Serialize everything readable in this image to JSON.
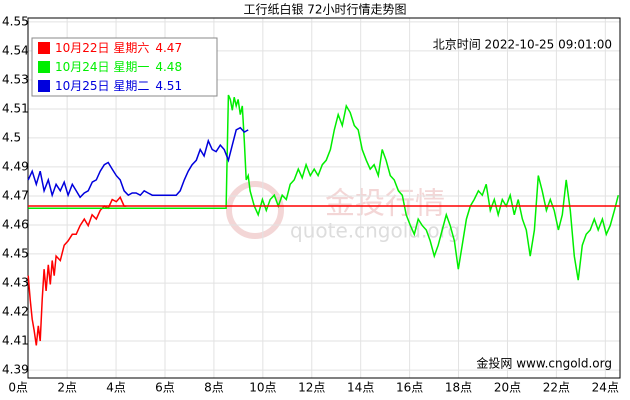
{
  "chart_data": {
    "type": "line",
    "title": "工行纸白银 72小时行情走势图",
    "subtitle": "北京时间 2022-10-25 09:01:00",
    "source": "金投网 www.cngold.org",
    "watermark": [
      "金投行情",
      "quote.cngold.org"
    ],
    "xlim": [
      0.4,
      24.6
    ],
    "xticks": [
      {
        "value": 0,
        "label": "0点"
      },
      {
        "value": 2,
        "label": "2点"
      },
      {
        "value": 4,
        "label": "4点"
      },
      {
        "value": 6,
        "label": "6点"
      },
      {
        "value": 8,
        "label": "8点"
      },
      {
        "value": 10,
        "label": "10点"
      },
      {
        "value": 12,
        "label": "12点"
      },
      {
        "value": 14,
        "label": "14点"
      },
      {
        "value": 16,
        "label": "16点"
      },
      {
        "value": 18,
        "label": "18点"
      },
      {
        "value": 20,
        "label": "20点"
      },
      {
        "value": 22,
        "label": "22点"
      },
      {
        "value": 24,
        "label": "24点"
      }
    ],
    "ylim": [
      4.391,
      4.5564
    ],
    "yticks": [
      {
        "value": 4.5546,
        "label": "4.55"
      },
      {
        "value": 4.5413,
        "label": "4.54"
      },
      {
        "value": 4.528,
        "label": "4.53"
      },
      {
        "value": 4.5146,
        "label": "4.51"
      },
      {
        "value": 4.5013,
        "label": "4.5"
      },
      {
        "value": 4.488,
        "label": "4.49"
      },
      {
        "value": 4.4746,
        "label": "4.47"
      },
      {
        "value": 4.4613,
        "label": "4.46"
      },
      {
        "value": 4.448,
        "label": "4.45"
      },
      {
        "value": 4.4346,
        "label": "4.43"
      },
      {
        "value": 4.4213,
        "label": "4.42"
      },
      {
        "value": 4.408,
        "label": "4.41"
      },
      {
        "value": 4.3946,
        "label": "4.39"
      }
    ],
    "grid": true,
    "legend": "top-left",
    "series": [
      {
        "name": "10月22日 星期六",
        "close": 4.47,
        "color": "#ff0000",
        "x": [
          0.41,
          0.49,
          0.57,
          0.65,
          0.74,
          0.82,
          0.9,
          0.98,
          1.06,
          1.14,
          1.23,
          1.31,
          1.39,
          1.47,
          1.55,
          1.72,
          1.88,
          2.04,
          2.21,
          2.37,
          2.53,
          2.7,
          2.86,
          3.02,
          3.19,
          3.35,
          3.52,
          3.68,
          3.84,
          4.01,
          4.17,
          4.33,
          4.42
        ],
        "values": [
          4.438,
          4.427,
          4.418,
          4.413,
          4.406,
          4.415,
          4.408,
          4.427,
          4.441,
          4.431,
          4.443,
          4.434,
          4.445,
          4.438,
          4.447,
          4.445,
          4.452,
          4.454,
          4.457,
          4.457,
          4.461,
          4.464,
          4.461,
          4.466,
          4.464,
          4.468,
          4.47,
          4.469,
          4.473,
          4.472,
          4.474,
          4.47,
          4.47
        ]
      },
      {
        "name": "10月24日 星期一",
        "close": 4.48,
        "color": "#00ee00",
        "x": [
          0.41,
          8.5,
          8.59,
          8.67,
          8.75,
          8.83,
          8.91,
          8.99,
          9.08,
          9.16,
          9.24,
          9.32,
          9.4,
          9.48,
          9.65,
          9.81,
          9.98,
          10.14,
          10.3,
          10.47,
          10.63,
          10.79,
          10.96,
          11.12,
          11.28,
          11.45,
          11.61,
          11.77,
          11.94,
          12.1,
          12.26,
          12.43,
          12.59,
          12.76,
          12.92,
          13.08,
          13.25,
          13.41,
          13.57,
          13.74,
          13.9,
          14.06,
          14.23,
          14.39,
          14.55,
          14.72,
          14.88,
          15.04,
          15.21,
          15.37,
          15.54,
          15.7,
          15.86,
          16.03,
          16.19,
          16.35,
          16.52,
          16.68,
          16.84,
          17.01,
          17.17,
          17.33,
          17.5,
          17.66,
          17.83,
          17.99,
          18.15,
          18.32,
          18.48,
          18.64,
          18.81,
          18.97,
          19.13,
          19.3,
          19.46,
          19.62,
          19.79,
          19.95,
          20.11,
          20.28,
          20.44,
          20.61,
          20.77,
          20.93,
          21.1,
          21.26,
          21.42,
          21.59,
          21.75,
          21.91,
          22.08,
          22.24,
          22.4,
          22.57,
          22.73,
          22.89,
          23.06,
          23.22,
          23.38,
          23.55,
          23.71,
          23.88,
          24.04,
          24.2,
          24.37,
          24.53
        ],
        "values": [
          4.469,
          4.469,
          4.521,
          4.519,
          4.514,
          4.52,
          4.516,
          4.519,
          4.512,
          4.516,
          4.5,
          4.482,
          4.484,
          4.477,
          4.47,
          4.466,
          4.473,
          4.468,
          4.473,
          4.475,
          4.47,
          4.475,
          4.473,
          4.48,
          4.482,
          4.487,
          4.483,
          4.489,
          4.484,
          4.487,
          4.484,
          4.489,
          4.491,
          4.496,
          4.505,
          4.512,
          4.507,
          4.516,
          4.513,
          4.507,
          4.505,
          4.496,
          4.491,
          4.487,
          4.489,
          4.484,
          4.496,
          4.491,
          4.484,
          4.482,
          4.477,
          4.475,
          4.466,
          4.461,
          4.457,
          4.464,
          4.461,
          4.459,
          4.454,
          4.447,
          4.452,
          4.459,
          4.466,
          4.461,
          4.454,
          4.441,
          4.452,
          4.464,
          4.47,
          4.473,
          4.477,
          4.475,
          4.48,
          4.468,
          4.473,
          4.466,
          4.473,
          4.47,
          4.475,
          4.466,
          4.473,
          4.464,
          4.459,
          4.447,
          4.459,
          4.484,
          4.477,
          4.468,
          4.473,
          4.468,
          4.459,
          4.466,
          4.482,
          4.468,
          4.447,
          4.436,
          4.452,
          4.457,
          4.459,
          4.464,
          4.459,
          4.464,
          4.457,
          4.461,
          4.468,
          4.475
        ]
      },
      {
        "name": "10月25日 星期二",
        "close": 4.51,
        "color": "#0000dd",
        "x": [
          0.41,
          0.57,
          0.74,
          0.9,
          1.06,
          1.23,
          1.39,
          1.55,
          1.72,
          1.88,
          2.04,
          2.21,
          2.37,
          2.53,
          2.7,
          2.86,
          3.03,
          3.19,
          3.35,
          3.52,
          3.68,
          3.84,
          4.01,
          4.17,
          4.33,
          4.5,
          4.66,
          4.82,
          4.99,
          5.15,
          5.31,
          5.48,
          5.81,
          6.21,
          6.46,
          6.62,
          6.79,
          6.95,
          7.11,
          7.28,
          7.44,
          7.6,
          7.77,
          7.93,
          8.09,
          8.26,
          8.42,
          8.59,
          8.75,
          8.91,
          9.08,
          9.24,
          9.4
        ],
        "values": [
          4.482,
          4.486,
          4.48,
          4.486,
          4.477,
          4.482,
          4.475,
          4.48,
          4.477,
          4.481,
          4.475,
          4.48,
          4.477,
          4.474,
          4.476,
          4.477,
          4.481,
          4.482,
          4.486,
          4.489,
          4.49,
          4.487,
          4.484,
          4.482,
          4.477,
          4.475,
          4.476,
          4.476,
          4.475,
          4.477,
          4.476,
          4.475,
          4.475,
          4.475,
          4.475,
          4.477,
          4.482,
          4.486,
          4.489,
          4.491,
          4.496,
          4.493,
          4.5,
          4.496,
          4.495,
          4.498,
          4.496,
          4.491,
          4.498,
          4.505,
          4.506,
          4.504,
          4.505
        ]
      }
    ]
  }
}
